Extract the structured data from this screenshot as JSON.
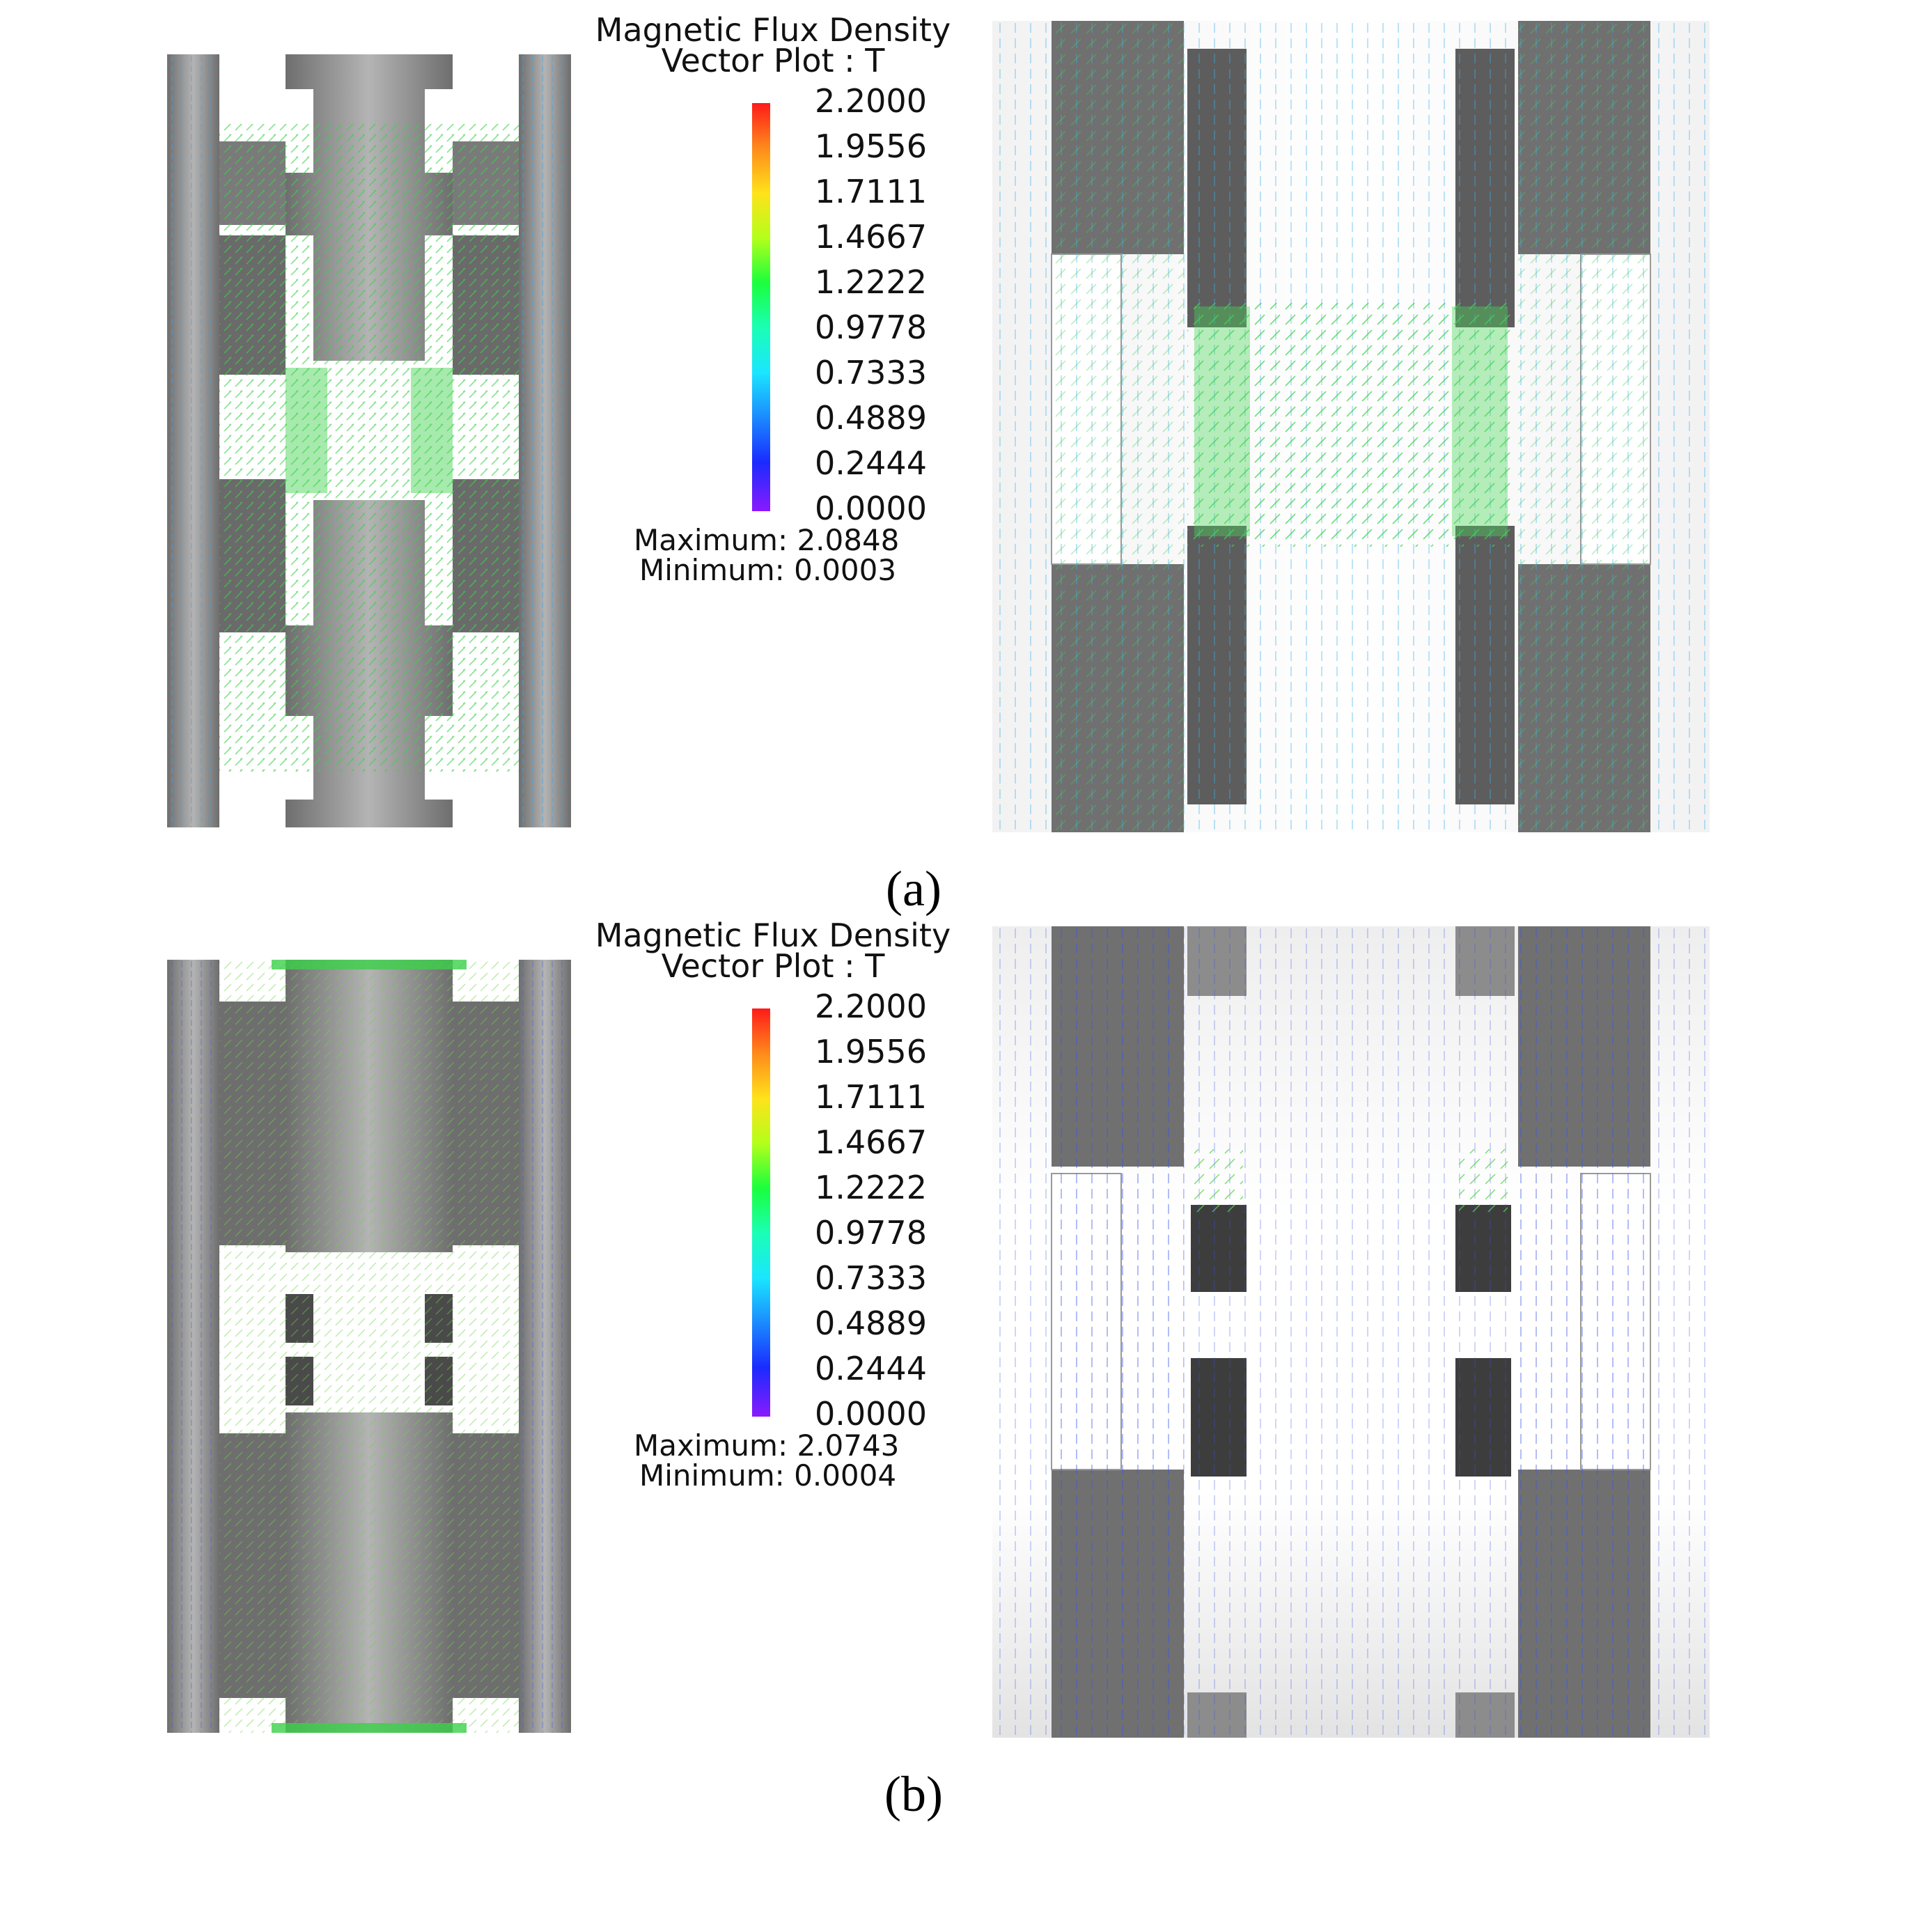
{
  "figure": {
    "panels": [
      {
        "id": "a",
        "label": "(a)",
        "legend": {
          "title_line1": "Magnetic Flux Density",
          "title_line2": "Vector Plot : T",
          "ticks": [
            "2.2000",
            "1.9556",
            "1.7111",
            "1.4667",
            "1.2222",
            "0.9778",
            "0.7333",
            "0.4889",
            "0.2444",
            "0.0000"
          ],
          "maximum": "Maximum: 2.0848",
          "minimum": "Minimum: 0.0003"
        }
      },
      {
        "id": "b",
        "label": "(b)",
        "legend": {
          "title_line1": "Magnetic Flux Density",
          "title_line2": "Vector Plot : T",
          "ticks": [
            "2.2000",
            "1.9556",
            "1.7111",
            "1.4667",
            "1.2222",
            "0.9778",
            "0.7333",
            "0.4889",
            "0.2444",
            "0.0000"
          ],
          "maximum": "Maximum: 2.0743",
          "minimum": "Minimum: 0.0004"
        }
      }
    ],
    "colors": {
      "steel": "#8f8f8f",
      "steel_dark": "#5a5a5a",
      "gap": "#ffffff",
      "background": "#eeeeee",
      "vector_high": "#2ecc40",
      "vector_mid": "#27c3e8",
      "vector_low": "#2a3cf0"
    }
  }
}
